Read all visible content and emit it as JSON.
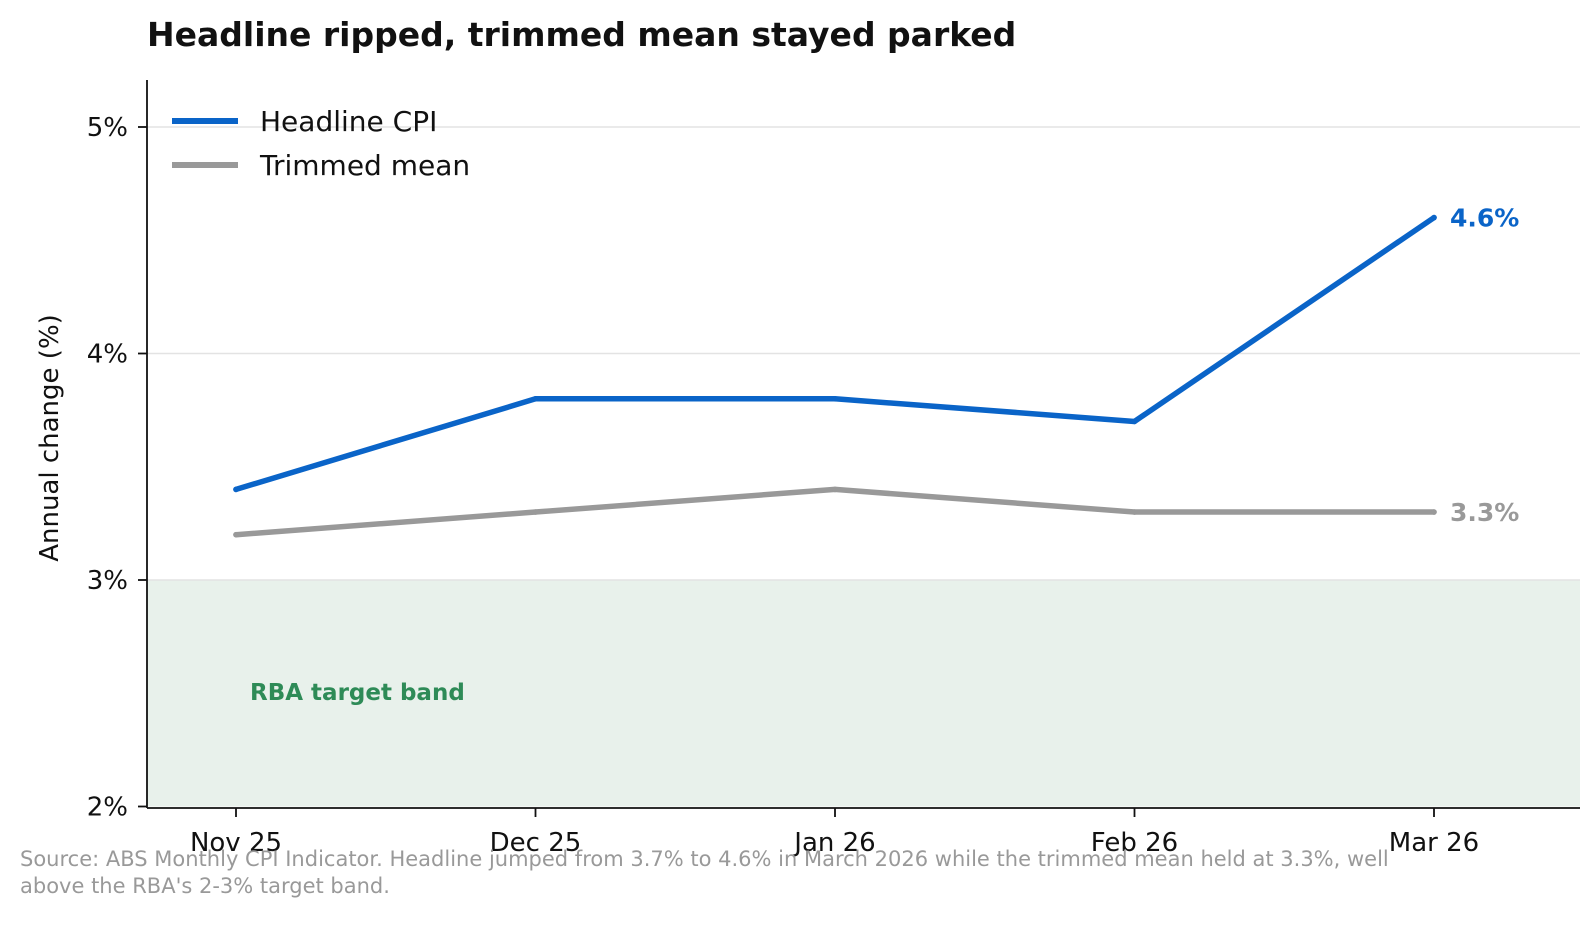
{
  "chart_data": {
    "type": "line",
    "title": "Headline ripped, trimmed mean stayed parked",
    "xlabel": "",
    "ylabel": "Annual change (%)",
    "categories": [
      "Nov 25",
      "Dec 25",
      "Jan 26",
      "Feb 26",
      "Mar 26"
    ],
    "ylim": [
      2,
      5.2
    ],
    "yticks": [
      2,
      3,
      4,
      5
    ],
    "ytick_labels": [
      "2%",
      "3%",
      "4%",
      "5%"
    ],
    "grid": "horizontal",
    "legend_position": "top-left",
    "series": [
      {
        "name": "Headline CPI",
        "color": "#0a64c8",
        "values": [
          3.4,
          3.8,
          3.8,
          3.7,
          4.6
        ],
        "end_label": "4.6%"
      },
      {
        "name": "Trimmed mean",
        "color": "#999999",
        "values": [
          3.2,
          3.3,
          3.4,
          3.3,
          3.3
        ],
        "end_label": "3.3%"
      }
    ],
    "band": {
      "label": "RBA target band",
      "from": 2,
      "to": 3,
      "fill_color": "#e8f1eb",
      "label_color": "#2e8b57"
    },
    "source": "Source: ABS Monthly CPI Indicator. Headline jumped from 3.7% to 4.6% in March 2026 while the trimmed mean held at 3.3%, well above the RBA's 2-3% target band."
  }
}
